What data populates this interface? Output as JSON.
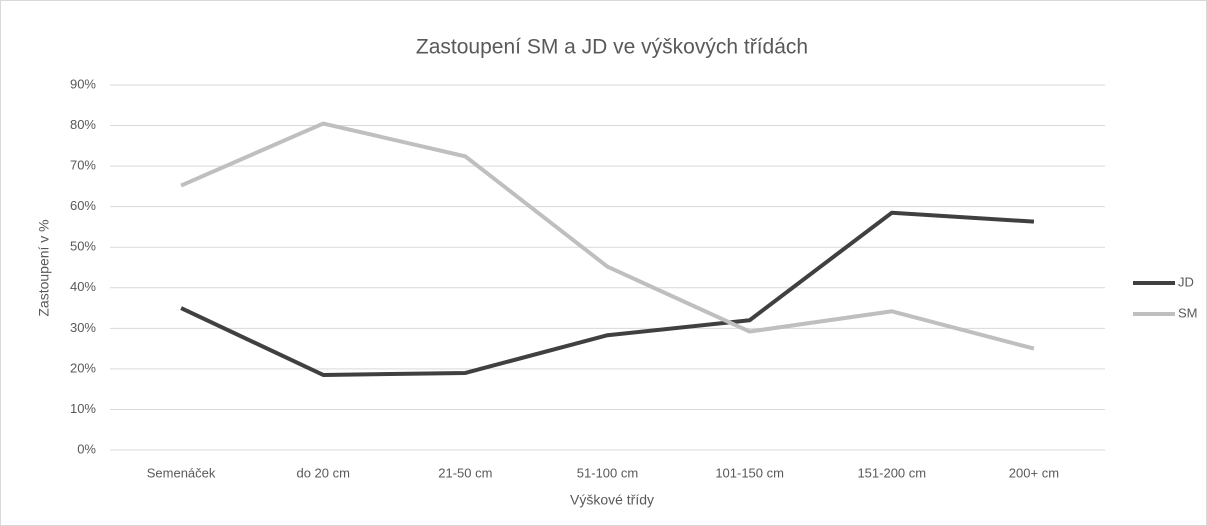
{
  "chart_data": {
    "type": "line",
    "title": "Zastoupení SM a JD ve výškových třídách",
    "x_label": "Výškové třídy",
    "y_label": "Zastoupení v %",
    "categories": [
      "Semenáček",
      "do 20 cm",
      "21-50 cm",
      "51-100 cm",
      "101-150 cm",
      "151-200 cm",
      "200+ cm"
    ],
    "series": [
      {
        "name": "JD",
        "color": "#404040",
        "values": [
          35,
          18.5,
          19,
          28.3,
          32,
          58.5,
          56.3
        ]
      },
      {
        "name": "SM",
        "color": "#bfbfbf",
        "values": [
          65.2,
          80.5,
          72.4,
          45.2,
          29.2,
          34.2,
          25
        ]
      }
    ],
    "ylim": [
      0,
      90
    ],
    "yticks": [
      {
        "value": 0,
        "label": "0%"
      },
      {
        "value": 10,
        "label": "10%"
      },
      {
        "value": 20,
        "label": "20%"
      },
      {
        "value": 30,
        "label": "30%"
      },
      {
        "value": 40,
        "label": "40%"
      },
      {
        "value": 50,
        "label": "50%"
      },
      {
        "value": 60,
        "label": "60%"
      },
      {
        "value": 70,
        "label": "70%"
      },
      {
        "value": 80,
        "label": "80%"
      },
      {
        "value": 90,
        "label": "90%"
      }
    ],
    "grid": true,
    "legend": "right"
  }
}
